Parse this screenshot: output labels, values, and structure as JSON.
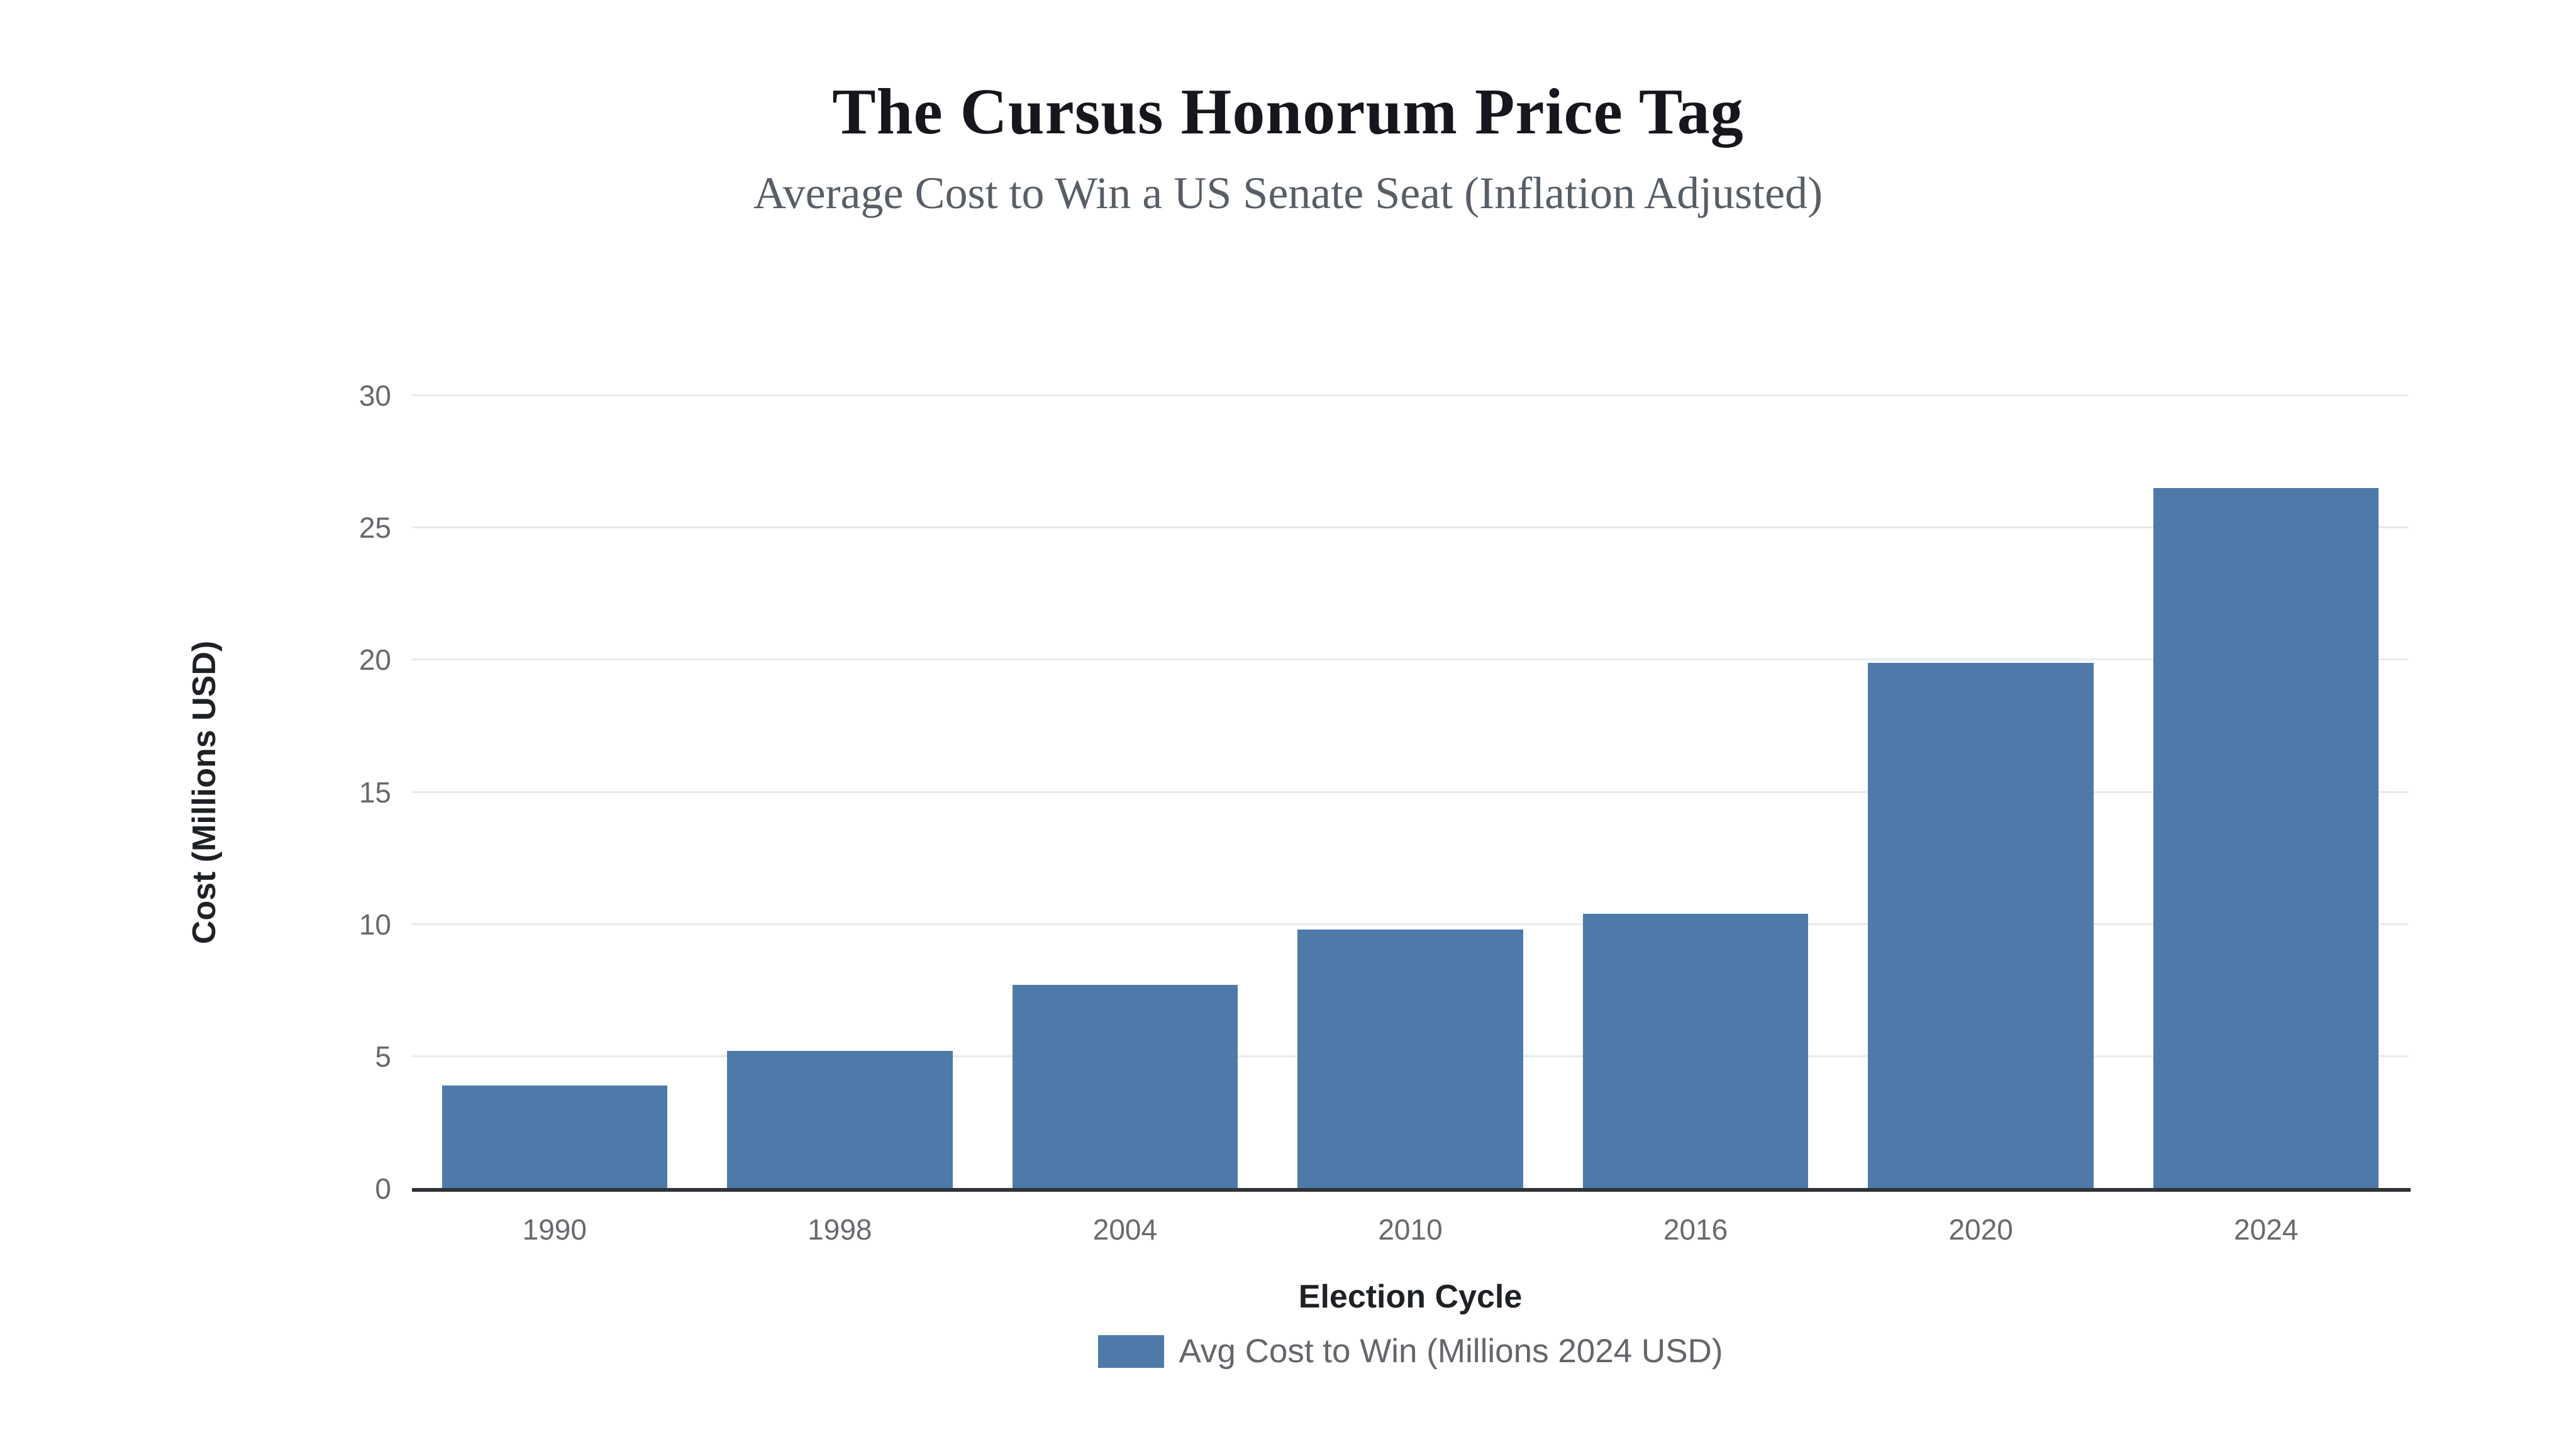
{
  "header": {
    "title": "The Cursus Honorum Price Tag",
    "subtitle": "Average Cost to Win a US Senate Seat (Inflation Adjusted)"
  },
  "chart_data": {
    "type": "bar",
    "title": "The Cursus Honorum Price Tag",
    "subtitle": "Average Cost to Win a US Senate Seat (Inflation Adjusted)",
    "categories": [
      "1990",
      "1998",
      "2004",
      "2010",
      "2016",
      "2020",
      "2024"
    ],
    "series": [
      {
        "name": "Avg Cost to Win (Millions 2024 USD)",
        "values": [
          3.9,
          5.2,
          7.7,
          9.8,
          10.4,
          19.9,
          26.5
        ]
      }
    ],
    "xlabel": "Election Cycle",
    "ylabel": "Cost (Millions USD)",
    "ylim": [
      0,
      30
    ],
    "yticks": [
      0,
      5,
      10,
      15,
      20,
      25,
      30
    ],
    "grid": true,
    "legend": {
      "position": "bottom",
      "label": "Avg Cost to Win (Millions 2024 USD)"
    },
    "colors": {
      "bar": "#4d7aa8",
      "gridline": "#e8eaee",
      "axis_line": "#303338",
      "tick_text": "#66696d",
      "axis_title_text": "#1e2125",
      "title_text": "#15171c",
      "subtitle_text": "#585e66",
      "legend_text": "#63666b",
      "background": "#ffffff"
    }
  }
}
